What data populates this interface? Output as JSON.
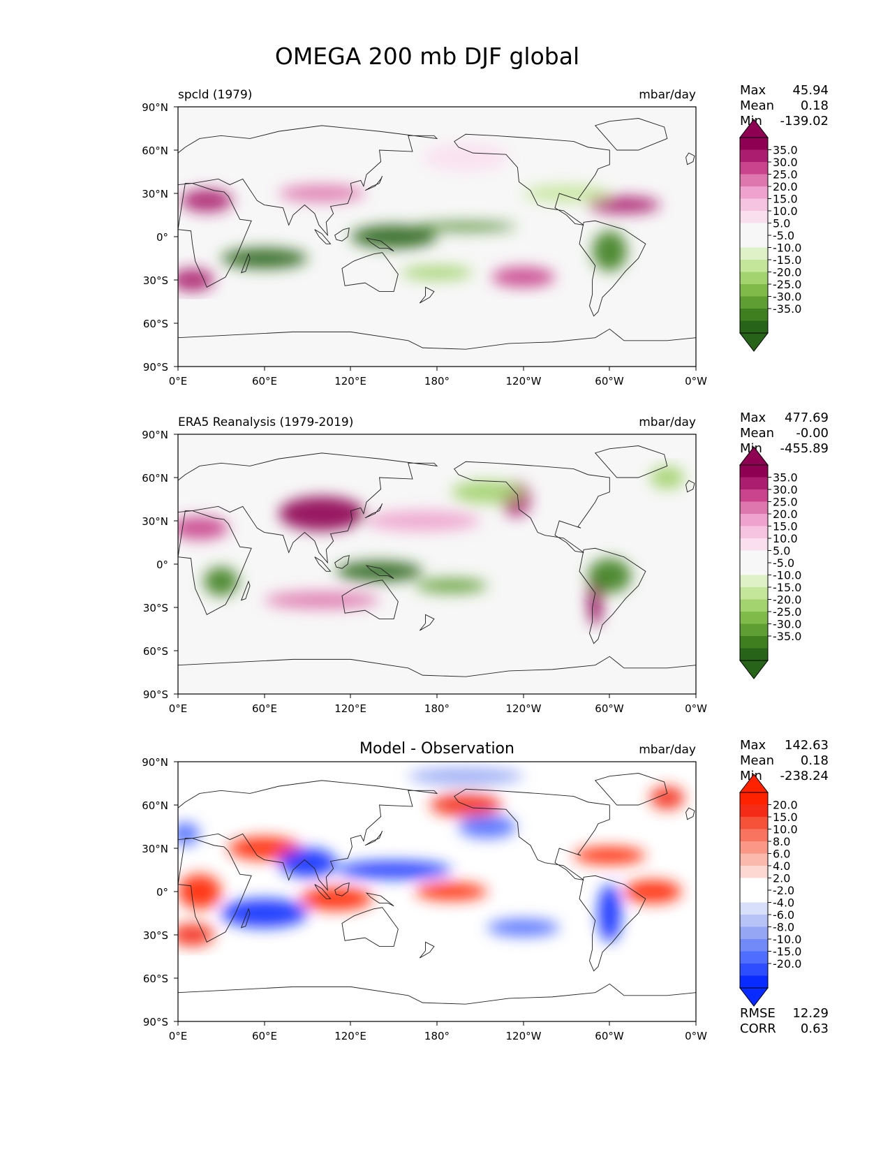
{
  "figure_title": "OMEGA 200 mb DJF global",
  "colors": {
    "map_background": "#f7f7f7",
    "coastline": "#222222",
    "piyg_palette": [
      "#276419",
      "#3f7f20",
      "#5f9e33",
      "#80bb4a",
      "#a3d36f",
      "#c4e69a",
      "#dff1c7",
      "#f7f7f7",
      "#f7f7f7",
      "#fae0ef",
      "#f6c4e0",
      "#eea2cd",
      "#de77ae",
      "#c9448d",
      "#ab1d6f",
      "#8e0152"
    ],
    "bwr_palette": [
      "#0a2bff",
      "#2d4dff",
      "#4f6dff",
      "#7289f8",
      "#95a6f4",
      "#b7c3f6",
      "#d8dffa",
      "#ffffff",
      "#ffffff",
      "#fdd8d2",
      "#fbb9ad",
      "#fa9787",
      "#f8745f",
      "#f65139",
      "#f42c17",
      "#ff2200"
    ]
  },
  "chart_data": [
    {
      "type": "heatmap",
      "title": "spcld (1979)",
      "units": "mbar/day",
      "stats": {
        "Max": "45.94",
        "Mean": "0.18",
        "Min": "-139.02"
      },
      "colorbar_labels": [
        "35.0",
        "30.0",
        "25.0",
        "20.0",
        "15.0",
        "10.0",
        "5.0",
        "-5.0",
        "-10.0",
        "-15.0",
        "-20.0",
        "-25.0",
        "-30.0",
        "-35.0"
      ],
      "xlim": [
        0,
        360
      ],
      "ylim": [
        -90,
        90
      ],
      "xticks": [
        "0°E",
        "60°E",
        "120°E",
        "180°",
        "120°W",
        "60°W",
        "0°W"
      ],
      "yticks": [
        "90°N",
        "60°N",
        "30°N",
        "0°",
        "30°S",
        "60°S",
        "90°S"
      ],
      "blobs": [
        {
          "lon": 20,
          "lat": 25,
          "rx": 18,
          "ry": 8,
          "v": 28
        },
        {
          "lon": 100,
          "lat": 30,
          "rx": 30,
          "ry": 6,
          "v": 20
        },
        {
          "lon": 310,
          "lat": 22,
          "rx": 25,
          "ry": 6,
          "v": 30
        },
        {
          "lon": 10,
          "lat": -30,
          "rx": 15,
          "ry": 8,
          "v": 30
        },
        {
          "lon": 240,
          "lat": -28,
          "rx": 22,
          "ry": 7,
          "v": 22
        },
        {
          "lon": 200,
          "lat": 55,
          "rx": 30,
          "ry": 10,
          "v": 8
        },
        {
          "lon": 60,
          "lat": -15,
          "rx": 30,
          "ry": 7,
          "v": -35
        },
        {
          "lon": 150,
          "lat": 0,
          "rx": 30,
          "ry": 8,
          "v": -35
        },
        {
          "lon": 200,
          "lat": 7,
          "rx": 35,
          "ry": 3,
          "v": -30
        },
        {
          "lon": 300,
          "lat": -10,
          "rx": 12,
          "ry": 14,
          "v": -30
        },
        {
          "lon": 180,
          "lat": -25,
          "rx": 25,
          "ry": 5,
          "v": -15
        },
        {
          "lon": 270,
          "lat": 30,
          "rx": 30,
          "ry": 6,
          "v": -12
        }
      ]
    },
    {
      "type": "heatmap",
      "title": "ERA5 Reanalysis (1979-2019)",
      "units": "mbar/day",
      "stats": {
        "Max": "477.69",
        "Mean": "-0.00",
        "Min": "-455.89"
      },
      "colorbar_labels": [
        "35.0",
        "30.0",
        "25.0",
        "20.0",
        "15.0",
        "10.0",
        "5.0",
        "-5.0",
        "-10.0",
        "-15.0",
        "-20.0",
        "-25.0",
        "-30.0",
        "-35.0"
      ],
      "xlim": [
        0,
        360
      ],
      "ylim": [
        -90,
        90
      ],
      "xticks": [
        "0°E",
        "60°E",
        "120°E",
        "180°",
        "120°W",
        "60°W",
        "0°W"
      ],
      "yticks": [
        "90°N",
        "60°N",
        "30°N",
        "0°",
        "30°S",
        "60°S",
        "90°S"
      ],
      "blobs": [
        {
          "lon": 100,
          "lat": 35,
          "rx": 30,
          "ry": 12,
          "v": 35
        },
        {
          "lon": 15,
          "lat": 25,
          "rx": 20,
          "ry": 8,
          "v": 25
        },
        {
          "lon": 235,
          "lat": 45,
          "rx": 10,
          "ry": 12,
          "v": 30
        },
        {
          "lon": 290,
          "lat": -25,
          "rx": 5,
          "ry": 18,
          "v": 35
        },
        {
          "lon": 170,
          "lat": 30,
          "rx": 40,
          "ry": 7,
          "v": 15
        },
        {
          "lon": 100,
          "lat": -25,
          "rx": 40,
          "ry": 6,
          "v": 18
        },
        {
          "lon": 30,
          "lat": -12,
          "rx": 12,
          "ry": 10,
          "v": -30
        },
        {
          "lon": 140,
          "lat": -5,
          "rx": 30,
          "ry": 7,
          "v": -35
        },
        {
          "lon": 190,
          "lat": -15,
          "rx": 25,
          "ry": 5,
          "v": -25
        },
        {
          "lon": 300,
          "lat": -8,
          "rx": 15,
          "ry": 12,
          "v": -30
        },
        {
          "lon": 215,
          "lat": 50,
          "rx": 25,
          "ry": 8,
          "v": -15
        },
        {
          "lon": 340,
          "lat": 60,
          "rx": 12,
          "ry": 8,
          "v": -15
        }
      ]
    },
    {
      "type": "heatmap",
      "title": "Model - Observation",
      "units": "mbar/day",
      "stats": {
        "Max": "142.63",
        "Mean": "0.18",
        "Min": "-238.24"
      },
      "footer_stats": {
        "RMSE": "12.29",
        "CORR": "0.63"
      },
      "colorbar_labels": [
        "20.0",
        "15.0",
        "10.0",
        "8.0",
        "6.0",
        "4.0",
        "2.0",
        "-2.0",
        "-4.0",
        "-6.0",
        "-8.0",
        "-10.0",
        "-15.0",
        "-20.0"
      ],
      "xlim": [
        0,
        360
      ],
      "ylim": [
        -90,
        90
      ],
      "xticks": [
        "0°E",
        "60°E",
        "120°E",
        "180°",
        "120°W",
        "60°W",
        "0°W"
      ],
      "yticks": [
        "90°N",
        "60°N",
        "30°N",
        "0°",
        "30°S",
        "60°S",
        "90°S"
      ],
      "blobs": [
        {
          "lon": 15,
          "lat": 0,
          "rx": 15,
          "ry": 12,
          "v": 20
        },
        {
          "lon": 110,
          "lat": -5,
          "rx": 25,
          "ry": 8,
          "v": 20
        },
        {
          "lon": 190,
          "lat": 0,
          "rx": 25,
          "ry": 6,
          "v": 18
        },
        {
          "lon": 300,
          "lat": 25,
          "rx": 25,
          "ry": 6,
          "v": 20
        },
        {
          "lon": 330,
          "lat": 0,
          "rx": 20,
          "ry": 8,
          "v": 18
        },
        {
          "lon": 60,
          "lat": 30,
          "rx": 25,
          "ry": 8,
          "v": 18
        },
        {
          "lon": 200,
          "lat": 60,
          "rx": 25,
          "ry": 8,
          "v": 15
        },
        {
          "lon": 340,
          "lat": 65,
          "rx": 12,
          "ry": 8,
          "v": 15
        },
        {
          "lon": 60,
          "lat": -15,
          "rx": 30,
          "ry": 10,
          "v": -20
        },
        {
          "lon": 150,
          "lat": 15,
          "rx": 40,
          "ry": 6,
          "v": -20
        },
        {
          "lon": 90,
          "lat": 20,
          "rx": 20,
          "ry": 10,
          "v": -20
        },
        {
          "lon": 300,
          "lat": -15,
          "rx": 8,
          "ry": 20,
          "v": -20
        },
        {
          "lon": 240,
          "lat": -25,
          "rx": 25,
          "ry": 6,
          "v": -15
        },
        {
          "lon": 215,
          "lat": 45,
          "rx": 20,
          "ry": 8,
          "v": -15
        },
        {
          "lon": 5,
          "lat": 40,
          "rx": 10,
          "ry": 8,
          "v": -15
        },
        {
          "lon": 200,
          "lat": 80,
          "rx": 40,
          "ry": 6,
          "v": -10
        },
        {
          "lon": 10,
          "lat": -30,
          "rx": 15,
          "ry": 8,
          "v": 15
        }
      ]
    }
  ]
}
